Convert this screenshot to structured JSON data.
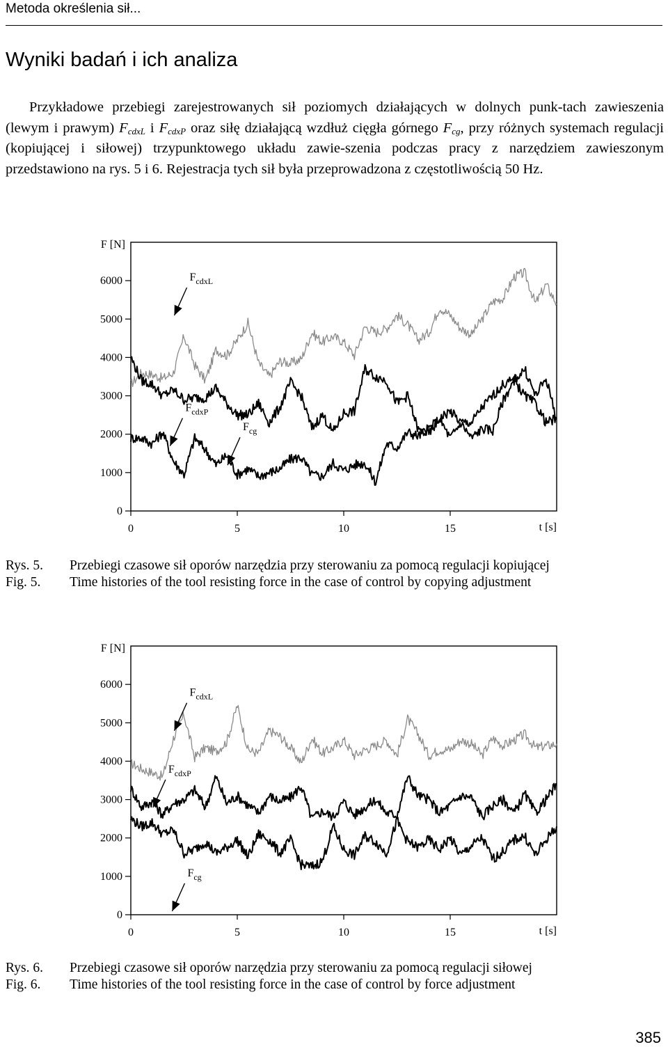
{
  "header": {
    "running_head": "Metoda określenia sił..."
  },
  "section": {
    "title": "Wyniki badań i ich analiza"
  },
  "paragraph": {
    "p1": "Przykładowe przebiegi zarejestrowanych sił poziomych działających w dolnych punk-tach zawieszenia (lewym i prawym) ",
    "fl": "F",
    "fl_sub": "cdxL",
    "p2": " i ",
    "fp": "F",
    "fp_sub": "cdxP",
    "p3": " oraz siłę działającą wzdłuż cięgła górnego ",
    "fc": "F",
    "fc_sub": "cg",
    "p4": ", przy różnych systemach regulacji (kopiującej i siłowej) trzypunktowego układu zawie-szenia podczas pracy z narzędziem zawieszonym przedstawiono na rys. 5 i 6. Rejestracja tych sił była przeprowadzona z częstotliwością 50 Hz."
  },
  "chart_data": [
    {
      "type": "line",
      "title": "",
      "xlabel": "t [s]",
      "ylabel": "F [N]",
      "xlim": [
        0,
        20
      ],
      "ylim": [
        0,
        7000
      ],
      "x_ticks": [
        "0",
        "5",
        "10",
        "15"
      ],
      "y_ticks": [
        "0",
        "1000",
        "2000",
        "3000",
        "4000",
        "5000",
        "6000"
      ],
      "annotations": [
        {
          "label": "F",
          "sub": "cdxL",
          "x": 2.5,
          "y": 6000
        },
        {
          "label": "F",
          "sub": "cdxP",
          "x": 2.3,
          "y": 2600
        },
        {
          "label": "F",
          "sub": "cg",
          "x": 5.0,
          "y": 2100
        }
      ],
      "series": [
        {
          "color": "#8a8a8a",
          "x": [
            0,
            0.5,
            1,
            1.5,
            2,
            2.5,
            3,
            3.5,
            4,
            4.5,
            5,
            5.5,
            6,
            6.5,
            7,
            7.5,
            8,
            8.5,
            9,
            9.5,
            10,
            10.5,
            11,
            11.5,
            12,
            12.5,
            13,
            13.5,
            14,
            14.5,
            15,
            15.5,
            16,
            16.5,
            17,
            17.5,
            18,
            18.5,
            19,
            19.5,
            20
          ],
          "y": [
            3300,
            3600,
            3550,
            3450,
            3600,
            4550,
            3800,
            3400,
            4200,
            4050,
            4450,
            4900,
            3850,
            3500,
            3900,
            3850,
            3950,
            4650,
            4400,
            4550,
            4400,
            4050,
            4800,
            4650,
            4750,
            5100,
            4850,
            4450,
            4650,
            5300,
            5100,
            4750,
            4600,
            5000,
            5450,
            5550,
            6100,
            6200,
            5400,
            5900,
            5400
          ]
        },
        {
          "color": "#000000",
          "x": [
            0,
            0.5,
            1,
            1.5,
            2,
            2.5,
            3,
            3.5,
            4,
            4.5,
            5,
            5.5,
            6,
            6.5,
            7,
            7.5,
            8,
            8.5,
            9,
            9.5,
            10,
            10.5,
            11,
            11.5,
            12,
            12.5,
            13,
            13.5,
            14,
            14.5,
            15,
            15.5,
            16,
            16.5,
            17,
            17.5,
            18,
            18.5,
            19,
            19.5,
            20
          ],
          "y": [
            1900,
            1900,
            1750,
            2050,
            1300,
            950,
            1900,
            1600,
            1200,
            1450,
            950,
            1100,
            900,
            1000,
            1100,
            1350,
            1400,
            950,
            900,
            1250,
            1050,
            1200,
            1250,
            750,
            1750,
            1650,
            2050,
            1950,
            2150,
            2400,
            1900,
            2300,
            1900,
            2150,
            2100,
            2900,
            3400,
            3000,
            2800,
            2300,
            2400
          ]
        },
        {
          "color": "#000000",
          "x": [
            0,
            0.5,
            1,
            1.5,
            2,
            2.5,
            3,
            3.5,
            4,
            4.5,
            5,
            5.5,
            6,
            6.5,
            7,
            7.5,
            8,
            8.5,
            9,
            9.5,
            10,
            10.5,
            11,
            11.5,
            12,
            12.5,
            13,
            13.5,
            14,
            14.5,
            15,
            15.5,
            16,
            16.5,
            17,
            17.5,
            18,
            18.5,
            19,
            19.5,
            20
          ],
          "y": [
            4000,
            3400,
            3300,
            3000,
            3150,
            2900,
            2950,
            2950,
            3200,
            2800,
            2500,
            2500,
            2800,
            2300,
            2700,
            3350,
            3000,
            2150,
            2500,
            2050,
            2550,
            2600,
            3700,
            3500,
            3400,
            2800,
            3000,
            2100,
            2000,
            2400,
            2600,
            2300,
            2300,
            2700,
            3000,
            3300,
            3400,
            3700,
            3000,
            3450,
            2400
          ]
        }
      ]
    },
    {
      "type": "line",
      "title": "",
      "xlabel": "t [s]",
      "ylabel": "F [N]",
      "xlim": [
        0,
        20
      ],
      "ylim": [
        0,
        7000
      ],
      "x_ticks": [
        "0",
        "5",
        "10",
        "15"
      ],
      "y_ticks": [
        "0",
        "1000",
        "2000",
        "3000",
        "4000",
        "5000",
        "6000"
      ],
      "annotations": [
        {
          "label": "F",
          "sub": "cdxL",
          "x": 2.5,
          "y": 5700
        },
        {
          "label": "F",
          "sub": "cdxP",
          "x": 1.5,
          "y": 3700
        },
        {
          "label": "F",
          "sub": "cg",
          "x": 2.4,
          "y": 1000
        }
      ],
      "series": [
        {
          "color": "#8a8a8a",
          "x": [
            0,
            0.5,
            1,
            1.5,
            2,
            2.5,
            3,
            3.5,
            4,
            4.5,
            5,
            5.5,
            6,
            6.5,
            7,
            7.5,
            8,
            8.5,
            9,
            9.5,
            10,
            10.5,
            11,
            11.5,
            12,
            12.5,
            13,
            13.5,
            14,
            14.5,
            15,
            15.5,
            16,
            16.5,
            17,
            17.5,
            18,
            18.5,
            19,
            19.5,
            20
          ],
          "y": [
            3950,
            3800,
            3700,
            3600,
            4600,
            5200,
            4100,
            4350,
            4250,
            4500,
            5450,
            4300,
            4200,
            4800,
            4650,
            4350,
            3950,
            4600,
            4200,
            4350,
            4550,
            4150,
            4300,
            4400,
            4550,
            4150,
            5100,
            4700,
            4150,
            4300,
            4300,
            4550,
            4450,
            4150,
            4600,
            4400,
            4550,
            4700,
            4350,
            4400,
            4450
          ]
        },
        {
          "color": "#000000",
          "x": [
            0,
            0.5,
            1,
            1.5,
            2,
            2.5,
            3,
            3.5,
            4,
            4.5,
            5,
            5.5,
            6,
            6.5,
            7,
            7.5,
            8,
            8.5,
            9,
            9.5,
            10,
            10.5,
            11,
            11.5,
            12,
            12.5,
            13,
            13.5,
            14,
            14.5,
            15,
            15.5,
            16,
            16.5,
            17,
            17.5,
            18,
            18.5,
            19,
            19.5,
            20
          ],
          "y": [
            3300,
            2800,
            2950,
            2600,
            2900,
            3000,
            3250,
            2800,
            3600,
            2900,
            3100,
            2850,
            2650,
            3100,
            2950,
            3050,
            3350,
            2500,
            2700,
            2550,
            2950,
            2600,
            2800,
            3000,
            2650,
            2600,
            3600,
            3100,
            3000,
            2650,
            2850,
            3100,
            3050,
            2550,
            2850,
            3000,
            2650,
            3150,
            2650,
            3000,
            3400
          ]
        },
        {
          "color": "#000000",
          "x": [
            0,
            0.5,
            1,
            1.5,
            2,
            2.5,
            3,
            3.5,
            4,
            4.5,
            5,
            5.5,
            6,
            6.5,
            7,
            7.5,
            8,
            8.5,
            9,
            9.5,
            10,
            10.5,
            11,
            11.5,
            12,
            12.5,
            13,
            13.5,
            14,
            14.5,
            15,
            15.5,
            16,
            16.5,
            17,
            17.5,
            18,
            18.5,
            19,
            19.5,
            20
          ],
          "y": [
            2500,
            2300,
            2400,
            2100,
            2200,
            1600,
            1700,
            1900,
            1600,
            1750,
            1950,
            1500,
            2100,
            1950,
            1600,
            1950,
            1300,
            1250,
            1400,
            2300,
            1700,
            1550,
            2050,
            1900,
            1600,
            2450,
            1900,
            1750,
            1950,
            1700,
            2000,
            1550,
            1800,
            2000,
            1450,
            1650,
            1950,
            2050,
            1550,
            1950,
            2300
          ]
        }
      ]
    }
  ],
  "captions": [
    {
      "rys_label": "Rys. 5.",
      "rys_text": "Przebiegi czasowe sił oporów narzędzia przy sterowaniu za pomocą regulacji kopiującej",
      "fig_label": "Fig. 5.",
      "fig_text": "Time histories of the tool resisting force in the case of control by copying adjustment"
    },
    {
      "rys_label": "Rys. 6.",
      "rys_text": "Przebiegi czasowe sił oporów narzędzia przy sterowaniu za pomocą regulacji siłowej",
      "fig_label": "Fig. 6.",
      "fig_text": "Time histories of the tool resisting force in the case of control by force adjustment"
    }
  ],
  "footer": {
    "page_number": "385"
  }
}
